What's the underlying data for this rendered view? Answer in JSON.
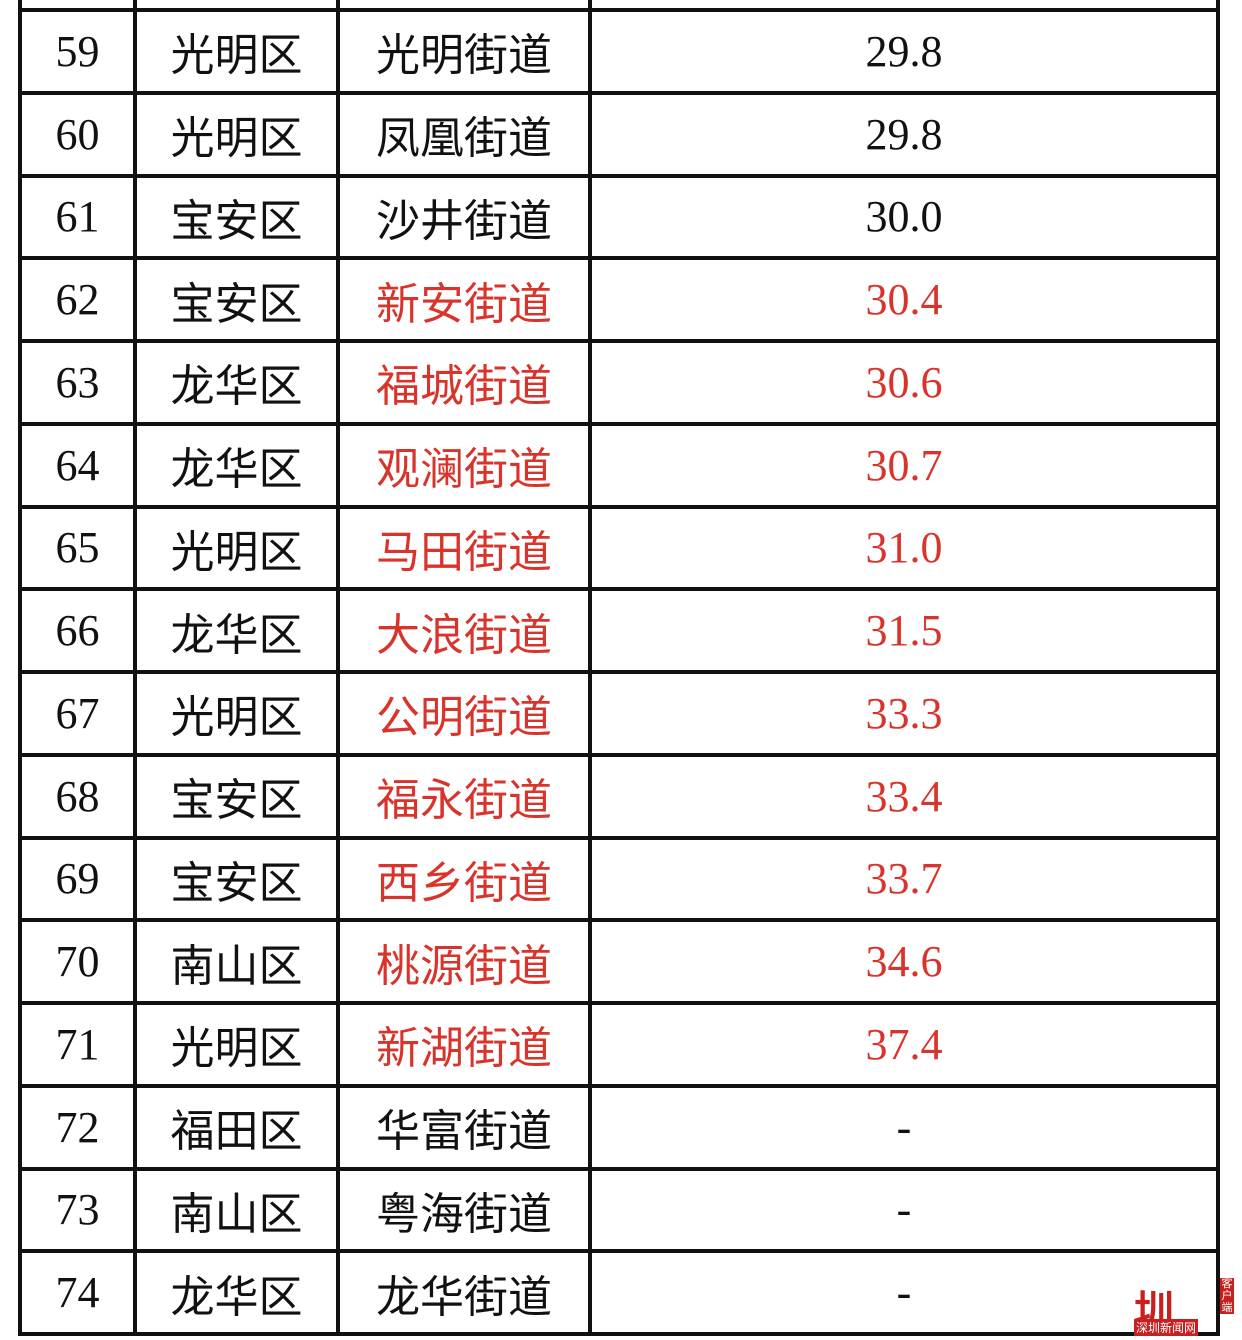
{
  "table": {
    "rows": [
      {
        "cells": [
          "59",
          "光明区",
          "光明街道",
          "29.8"
        ],
        "color": "#111111"
      },
      {
        "cells": [
          "60",
          "光明区",
          "凤凰街道",
          "29.8"
        ],
        "color": "#111111"
      },
      {
        "cells": [
          "61",
          "宝安区",
          "沙井街道",
          "30.0"
        ],
        "color": "#111111"
      },
      {
        "cells": [
          "62",
          "宝安区",
          "新安街道",
          "30.4"
        ],
        "color": "#d9342b"
      },
      {
        "cells": [
          "63",
          "龙华区",
          "福城街道",
          "30.6"
        ],
        "color": "#d9342b"
      },
      {
        "cells": [
          "64",
          "龙华区",
          "观澜街道",
          "30.7"
        ],
        "color": "#d9342b"
      },
      {
        "cells": [
          "65",
          "光明区",
          "马田街道",
          "31.0"
        ],
        "color": "#d9342b"
      },
      {
        "cells": [
          "66",
          "龙华区",
          "大浪街道",
          "31.5"
        ],
        "color": "#d9342b"
      },
      {
        "cells": [
          "67",
          "光明区",
          "公明街道",
          "33.3"
        ],
        "color": "#d9342b"
      },
      {
        "cells": [
          "68",
          "宝安区",
          "福永街道",
          "33.4"
        ],
        "color": "#d9342b"
      },
      {
        "cells": [
          "69",
          "宝安区",
          "西乡街道",
          "33.7"
        ],
        "color": "#d9342b"
      },
      {
        "cells": [
          "70",
          "南山区",
          "桃源街道",
          "34.6"
        ],
        "color": "#d9342b"
      },
      {
        "cells": [
          "71",
          "光明区",
          "新湖街道",
          "37.4"
        ],
        "color": "#d9342b"
      },
      {
        "cells": [
          "72",
          "福田区",
          "华富街道",
          "-"
        ],
        "color": "#111111"
      },
      {
        "cells": [
          "73",
          "南山区",
          "粤海街道",
          "-"
        ],
        "color": "#111111"
      },
      {
        "cells": [
          "74",
          "龙华区",
          "龙华街道",
          "-"
        ],
        "color": "#111111"
      }
    ]
  },
  "watermark": {
    "logo": "圳",
    "name": "深圳新闻网",
    "sub": "客户端"
  }
}
